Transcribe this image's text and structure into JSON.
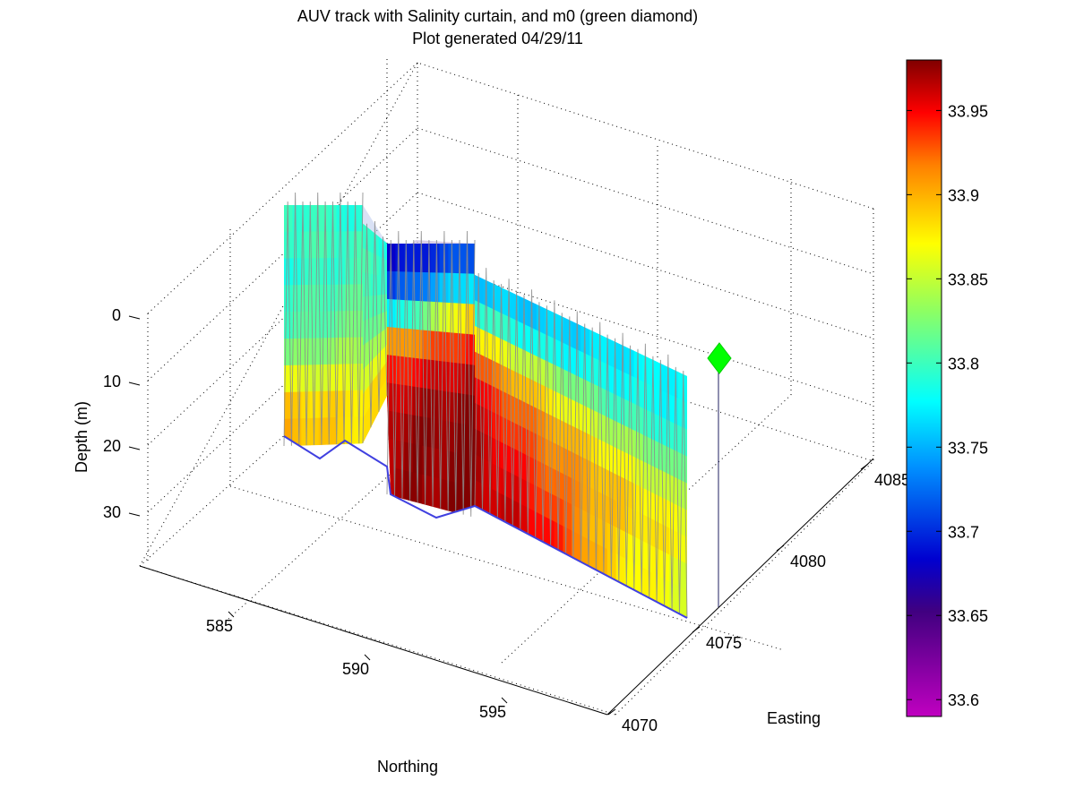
{
  "chart_data": {
    "type": "3d-curtain",
    "title": "AUV track with Salinity curtain, and m0 (green diamond)",
    "subtitle": "Plot generated 04/29/11",
    "xlabel": "Northing",
    "ylabel": "Easting",
    "zlabel": "Depth (m)",
    "northing_ticks": [
      585,
      590,
      595
    ],
    "easting_ticks": [
      4070,
      4075,
      4080,
      4085
    ],
    "depth_ticks": [
      0,
      10,
      20,
      30
    ],
    "grid": true,
    "colorbar": {
      "ticks": [
        33.95,
        33.9,
        33.85,
        33.8,
        33.75,
        33.7,
        33.65,
        33.6
      ],
      "min": 33.59,
      "max": 33.98,
      "colormap": "jet-magenta"
    },
    "marker": {
      "name": "m0",
      "shape": "diamond",
      "color": "#00ff00"
    },
    "curtain_salinity_pattern": [
      [
        33.8,
        33.8,
        33.79,
        33.8,
        33.8,
        33.82,
        33.86,
        33.89,
        33.9
      ],
      [
        33.79,
        33.8,
        33.8,
        33.81,
        33.82,
        33.84,
        33.86,
        33.88,
        33.88
      ],
      [
        33.68,
        33.7,
        33.76,
        33.9,
        33.94,
        33.96,
        33.97,
        33.97,
        33.97
      ],
      [
        33.72,
        33.78,
        33.9,
        33.95,
        33.97,
        33.98,
        33.98,
        33.98,
        33.98
      ],
      [
        33.76,
        33.8,
        33.88,
        33.93,
        33.95,
        33.96,
        33.97,
        33.97,
        33.97
      ],
      [
        33.76,
        33.78,
        33.84,
        33.88,
        33.91,
        33.92,
        33.93,
        33.94,
        33.95
      ],
      [
        33.77,
        33.78,
        33.8,
        33.84,
        33.87,
        33.89,
        33.89,
        33.88,
        33.88
      ],
      [
        33.78,
        33.78,
        33.79,
        33.81,
        33.84,
        33.86,
        33.87,
        33.86,
        33.86
      ]
    ]
  }
}
